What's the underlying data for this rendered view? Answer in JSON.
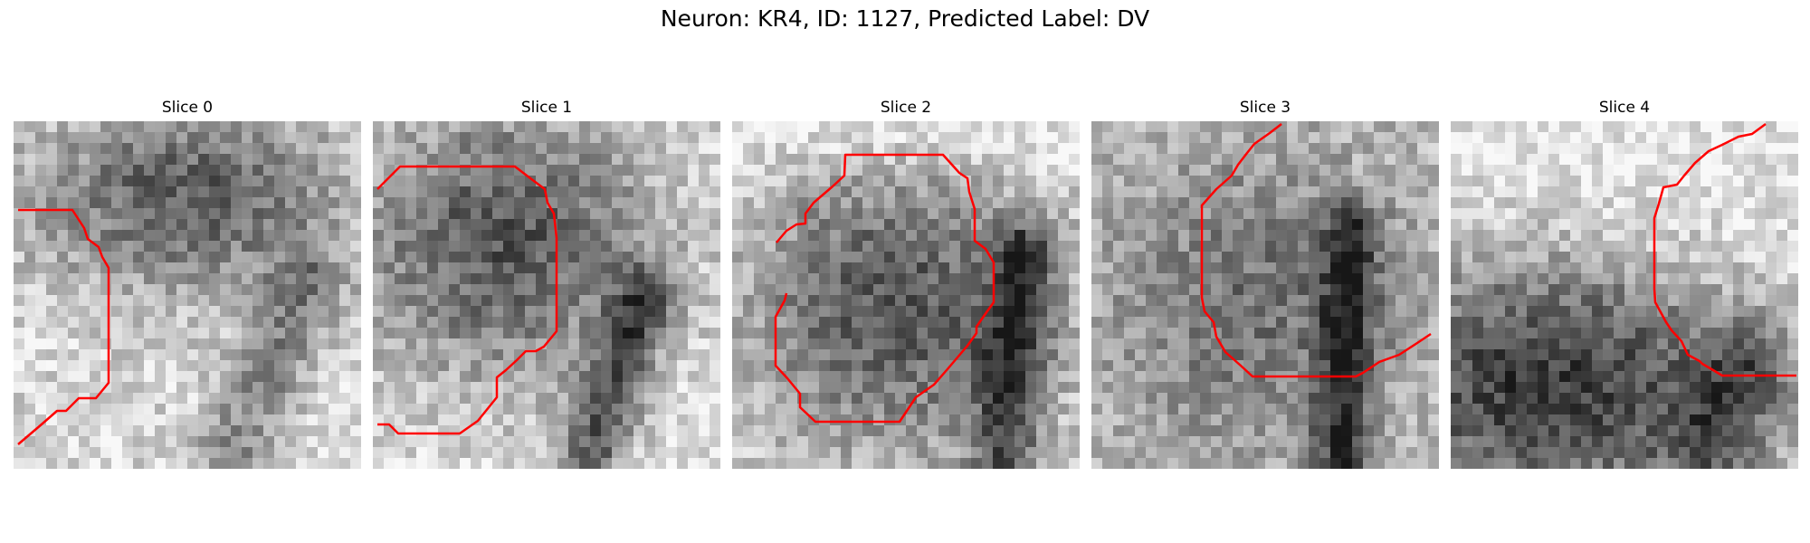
{
  "figure": {
    "title": "Neuron: KR4, ID: 1127, Predicted Label: DV"
  },
  "contour_color": "#ff0000",
  "slices": [
    {
      "label": "Slice 0",
      "image": "grayscale-microscopy-patch"
    },
    {
      "label": "Slice 1",
      "image": "grayscale-microscopy-patch"
    },
    {
      "label": "Slice 2",
      "image": "grayscale-microscopy-patch"
    },
    {
      "label": "Slice 3",
      "image": "grayscale-microscopy-patch"
    },
    {
      "label": "Slice 4",
      "image": "grayscale-microscopy-patch"
    }
  ]
}
